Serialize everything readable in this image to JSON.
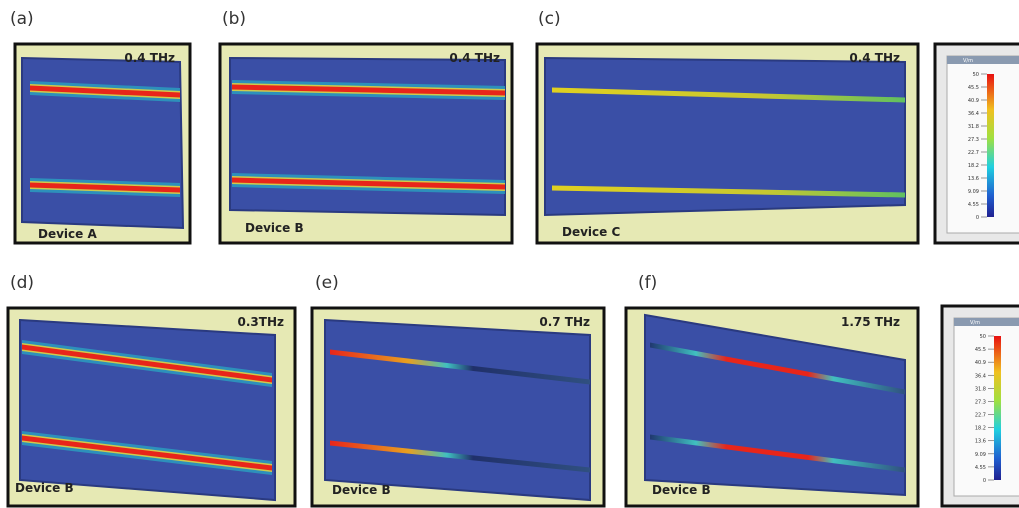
{
  "panels": [
    {
      "label": "(a)",
      "frequency": "0.4 THz",
      "device": "Device A"
    },
    {
      "label": "(b)",
      "frequency": "0.4 THz",
      "device": "Device B"
    },
    {
      "label": "(c)",
      "frequency": "0.4 THz",
      "device": "Device C"
    },
    {
      "label": "(d)",
      "frequency": "0.3THz",
      "device": "Device B"
    },
    {
      "label": "(e)",
      "frequency": "0.7 THz",
      "device": "Device B"
    },
    {
      "label": "(f)",
      "frequency": "1.75 THz",
      "device": "Device B"
    }
  ],
  "colorbars": [
    {
      "unit": "V/m",
      "ticks": [
        "50",
        "45.5",
        "40.9",
        "36.4",
        "31.8",
        "27.3",
        "22.7",
        "18.2",
        "13.6",
        "9.09",
        "4.55",
        "0"
      ]
    },
    {
      "unit": "V/m",
      "ticks": [
        "50",
        "45.5",
        "40.9",
        "36.4",
        "31.8",
        "27.3",
        "22.7",
        "18.2",
        "13.6",
        "9.09",
        "4.55",
        "0"
      ]
    }
  ]
}
